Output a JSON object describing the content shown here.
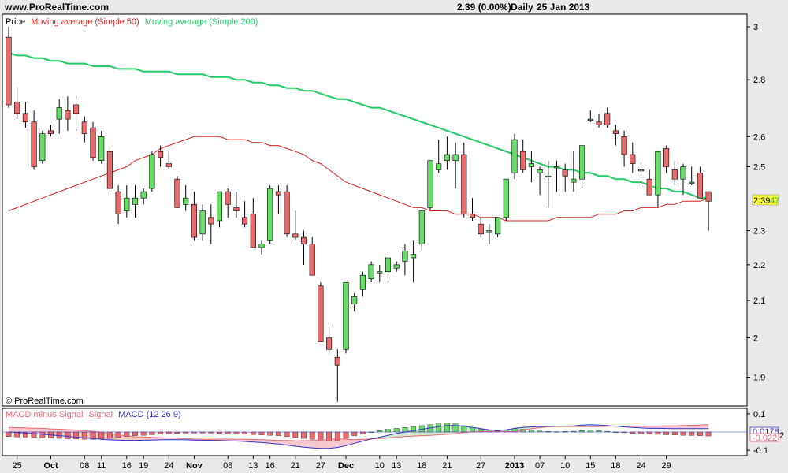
{
  "header": {
    "site": "www.ProRealTime.com",
    "quote": "2.39 (0.00%)",
    "period": "Daily",
    "date": "25 Jan 2013"
  },
  "legend": {
    "price": "Price",
    "ma50": "Moving average (Simple 50)",
    "ma200": "Moving average (Simple 200)"
  },
  "copyright": "© ProRealTime.com",
  "macd_legend": {
    "histogram": "MACD minus Signal",
    "signal": "Signal",
    "macd": "MACD (12 26 9)"
  },
  "colors": {
    "up": "#66dd66",
    "down": "#e86a6a",
    "ma50": "#dd2222",
    "ma200": "#22cc66",
    "macd": "#3333cc",
    "signal": "#ee6677",
    "price_tag": "#ffff33"
  },
  "price_tag": {
    "value": "2.39",
    "extra": "47"
  },
  "macd_tags": {
    "macd": "0.0178",
    "hist": "-0.022",
    "extra": "2"
  },
  "chart_data": [
    {
      "type": "candlestick",
      "title": "",
      "y_ticks": [
        1.9,
        2,
        2.1,
        2.2,
        2.3,
        2.5,
        2.6,
        2.8,
        3
      ],
      "ylim": [
        1.83,
        3.05
      ],
      "log_scale": true,
      "x_tick_labels": [
        "25",
        "Oct",
        "08",
        "11",
        "16",
        "19",
        "24",
        "Nov",
        "08",
        "13",
        "16",
        "21",
        "27",
        "Dec",
        "10",
        "13",
        "18",
        "21",
        "27",
        "2013",
        "07",
        "10",
        "15",
        "18",
        "24",
        "29"
      ],
      "x_tick_bars": [
        1,
        5,
        9,
        11,
        14,
        16,
        19,
        22,
        26,
        29,
        31,
        34,
        37,
        40,
        44,
        46,
        49,
        52,
        56,
        60,
        63,
        66,
        69,
        72,
        75,
        78
      ],
      "ohlc": [
        [
          2.96,
          3.0,
          2.7,
          2.71
        ],
        [
          2.72,
          2.77,
          2.66,
          2.68
        ],
        [
          2.68,
          2.72,
          2.63,
          2.65
        ],
        [
          2.65,
          2.69,
          2.49,
          2.5
        ],
        [
          2.52,
          2.62,
          2.51,
          2.61
        ],
        [
          2.62,
          2.64,
          2.6,
          2.61
        ],
        [
          2.66,
          2.73,
          2.61,
          2.7
        ],
        [
          2.69,
          2.74,
          2.62,
          2.66
        ],
        [
          2.71,
          2.74,
          2.62,
          2.68
        ],
        [
          2.65,
          2.67,
          2.58,
          2.61
        ],
        [
          2.63,
          2.65,
          2.52,
          2.53
        ],
        [
          2.52,
          2.62,
          2.51,
          2.6
        ],
        [
          2.55,
          2.57,
          2.42,
          2.43
        ],
        [
          2.42,
          2.44,
          2.32,
          2.35
        ],
        [
          2.36,
          2.44,
          2.34,
          2.4
        ],
        [
          2.38,
          2.44,
          2.34,
          2.4
        ],
        [
          2.4,
          2.43,
          2.38,
          2.42
        ],
        [
          2.43,
          2.55,
          2.42,
          2.54
        ],
        [
          2.55,
          2.57,
          2.5,
          2.53
        ],
        [
          2.51,
          2.55,
          2.49,
          2.5
        ],
        [
          2.46,
          2.47,
          2.37,
          2.37
        ],
        [
          2.38,
          2.44,
          2.36,
          2.4
        ],
        [
          2.38,
          2.42,
          2.27,
          2.28
        ],
        [
          2.29,
          2.38,
          2.27,
          2.36
        ],
        [
          2.34,
          2.38,
          2.26,
          2.32
        ],
        [
          2.33,
          2.42,
          2.31,
          2.42
        ],
        [
          2.42,
          2.43,
          2.34,
          2.38
        ],
        [
          2.37,
          2.42,
          2.34,
          2.36
        ],
        [
          2.34,
          2.39,
          2.31,
          2.32
        ],
        [
          2.35,
          2.4,
          2.25,
          2.25
        ],
        [
          2.25,
          2.27,
          2.23,
          2.26
        ],
        [
          2.27,
          2.44,
          2.26,
          2.43
        ],
        [
          2.42,
          2.44,
          2.35,
          2.41
        ],
        [
          2.42,
          2.44,
          2.28,
          2.29
        ],
        [
          2.29,
          2.36,
          2.27,
          2.28
        ],
        [
          2.28,
          2.3,
          2.2,
          2.26
        ],
        [
          2.26,
          2.28,
          2.17,
          2.17
        ],
        [
          2.14,
          2.15,
          1.99,
          1.99
        ],
        [
          2.0,
          2.03,
          1.96,
          1.97
        ],
        [
          1.95,
          1.97,
          1.84,
          1.93
        ],
        [
          1.97,
          2.15,
          1.96,
          2.15
        ],
        [
          2.09,
          2.12,
          2.07,
          2.11
        ],
        [
          2.13,
          2.18,
          2.11,
          2.17
        ],
        [
          2.16,
          2.21,
          2.15,
          2.2
        ],
        [
          2.18,
          2.2,
          2.15,
          2.18
        ],
        [
          2.18,
          2.23,
          2.15,
          2.22
        ],
        [
          2.19,
          2.21,
          2.18,
          2.2
        ],
        [
          2.21,
          2.26,
          2.17,
          2.24
        ],
        [
          2.22,
          2.27,
          2.15,
          2.23
        ],
        [
          2.26,
          2.36,
          2.24,
          2.36
        ],
        [
          2.37,
          2.52,
          2.36,
          2.52
        ],
        [
          2.49,
          2.59,
          2.48,
          2.51
        ],
        [
          2.52,
          2.6,
          2.49,
          2.54
        ],
        [
          2.52,
          2.58,
          2.43,
          2.54
        ],
        [
          2.54,
          2.58,
          2.34,
          2.35
        ],
        [
          2.35,
          2.4,
          2.33,
          2.34
        ],
        [
          2.32,
          2.34,
          2.28,
          2.29
        ],
        [
          2.3,
          2.32,
          2.26,
          2.3
        ],
        [
          2.29,
          2.34,
          2.28,
          2.34
        ],
        [
          2.34,
          2.46,
          2.33,
          2.46
        ],
        [
          2.48,
          2.61,
          2.46,
          2.59
        ],
        [
          2.55,
          2.59,
          2.48,
          2.49
        ],
        [
          2.5,
          2.55,
          2.45,
          2.51
        ],
        [
          2.48,
          2.5,
          2.41,
          2.49
        ],
        [
          2.47,
          2.52,
          2.37,
          2.47
        ],
        [
          2.5,
          2.52,
          2.42,
          2.5
        ],
        [
          2.49,
          2.51,
          2.42,
          2.47
        ],
        [
          2.45,
          2.55,
          2.42,
          2.46
        ],
        [
          2.46,
          2.56,
          2.43,
          2.57
        ],
        [
          2.66,
          2.69,
          2.65,
          2.66
        ],
        [
          2.65,
          2.68,
          2.63,
          2.64
        ],
        [
          2.68,
          2.7,
          2.63,
          2.64
        ],
        [
          2.62,
          2.64,
          2.57,
          2.61
        ],
        [
          2.6,
          2.62,
          2.5,
          2.54
        ],
        [
          2.54,
          2.58,
          2.48,
          2.51
        ],
        [
          2.49,
          2.51,
          2.44,
          2.49
        ],
        [
          2.46,
          2.49,
          2.42,
          2.41
        ],
        [
          2.41,
          2.55,
          2.37,
          2.55
        ],
        [
          2.56,
          2.57,
          2.48,
          2.5
        ],
        [
          2.49,
          2.52,
          2.44,
          2.46
        ],
        [
          2.46,
          2.51,
          2.41,
          2.5
        ],
        [
          2.45,
          2.5,
          2.44,
          2.45
        ],
        [
          2.48,
          2.5,
          2.4,
          2.4
        ],
        [
          2.42,
          2.42,
          2.3,
          2.39
        ]
      ],
      "ma50": [
        2.36,
        2.37,
        2.38,
        2.39,
        2.4,
        2.41,
        2.42,
        2.43,
        2.44,
        2.45,
        2.46,
        2.47,
        2.48,
        2.49,
        2.5,
        2.52,
        2.53,
        2.54,
        2.56,
        2.57,
        2.58,
        2.59,
        2.6,
        2.6,
        2.6,
        2.6,
        2.59,
        2.59,
        2.59,
        2.58,
        2.58,
        2.57,
        2.57,
        2.56,
        2.55,
        2.54,
        2.52,
        2.51,
        2.49,
        2.47,
        2.45,
        2.44,
        2.43,
        2.42,
        2.41,
        2.4,
        2.39,
        2.38,
        2.37,
        2.37,
        2.36,
        2.36,
        2.36,
        2.35,
        2.35,
        2.35,
        2.34,
        2.34,
        2.34,
        2.33,
        2.33,
        2.33,
        2.33,
        2.33,
        2.33,
        2.34,
        2.34,
        2.34,
        2.34,
        2.34,
        2.35,
        2.35,
        2.35,
        2.36,
        2.36,
        2.37,
        2.37,
        2.37,
        2.38,
        2.38,
        2.39,
        2.39,
        2.39,
        2.4
      ],
      "ma200": [
        2.9,
        2.89,
        2.89,
        2.88,
        2.88,
        2.87,
        2.87,
        2.86,
        2.86,
        2.86,
        2.85,
        2.85,
        2.85,
        2.84,
        2.84,
        2.84,
        2.83,
        2.83,
        2.83,
        2.83,
        2.82,
        2.82,
        2.82,
        2.82,
        2.81,
        2.81,
        2.81,
        2.8,
        2.8,
        2.79,
        2.79,
        2.78,
        2.78,
        2.77,
        2.77,
        2.76,
        2.76,
        2.75,
        2.74,
        2.73,
        2.73,
        2.72,
        2.71,
        2.7,
        2.7,
        2.69,
        2.68,
        2.67,
        2.66,
        2.65,
        2.64,
        2.63,
        2.62,
        2.61,
        2.6,
        2.59,
        2.58,
        2.57,
        2.56,
        2.55,
        2.54,
        2.53,
        2.52,
        2.51,
        2.5,
        2.5,
        2.49,
        2.49,
        2.48,
        2.48,
        2.47,
        2.47,
        2.46,
        2.46,
        2.45,
        2.45,
        2.44,
        2.43,
        2.43,
        2.42,
        2.42,
        2.41,
        2.4,
        2.4
      ]
    },
    {
      "type": "bar",
      "title": "",
      "y_ticks": [
        0.1,
        -0.1
      ],
      "ylim": [
        -0.13,
        0.13
      ],
      "histogram": [
        -0.025,
        -0.027,
        -0.028,
        -0.03,
        -0.032,
        -0.033,
        -0.035,
        -0.037,
        -0.038,
        -0.04,
        -0.04,
        -0.038,
        -0.035,
        -0.03,
        -0.025,
        -0.02,
        -0.018,
        -0.015,
        -0.012,
        -0.01,
        -0.008,
        -0.006,
        -0.005,
        -0.005,
        -0.006,
        -0.008,
        -0.009,
        -0.01,
        -0.012,
        -0.014,
        -0.016,
        -0.018,
        -0.02,
        -0.025,
        -0.03,
        -0.035,
        -0.04,
        -0.045,
        -0.05,
        -0.048,
        -0.035,
        -0.02,
        -0.01,
        0.0,
        0.008,
        0.015,
        0.02,
        0.025,
        0.03,
        0.035,
        0.04,
        0.045,
        0.048,
        0.045,
        0.035,
        0.025,
        0.015,
        0.01,
        0.005,
        0.01,
        0.018,
        0.015,
        0.01,
        0.006,
        0.003,
        0.002,
        0.003,
        0.004,
        0.008,
        0.01,
        0.008,
        0.004,
        0.0,
        -0.004,
        -0.008,
        -0.01,
        -0.012,
        -0.013,
        -0.015,
        -0.016,
        -0.018,
        -0.019,
        -0.02,
        -0.022
      ],
      "macd": [
        0.0,
        -0.003,
        -0.006,
        -0.009,
        -0.012,
        -0.016,
        -0.02,
        -0.024,
        -0.028,
        -0.032,
        -0.036,
        -0.04,
        -0.043,
        -0.045,
        -0.046,
        -0.046,
        -0.045,
        -0.044,
        -0.043,
        -0.042,
        -0.042,
        -0.043,
        -0.044,
        -0.045,
        -0.046,
        -0.047,
        -0.048,
        -0.05,
        -0.052,
        -0.055,
        -0.058,
        -0.062,
        -0.066,
        -0.072,
        -0.078,
        -0.083,
        -0.087,
        -0.09,
        -0.09,
        -0.085,
        -0.075,
        -0.062,
        -0.05,
        -0.038,
        -0.028,
        -0.018,
        -0.008,
        0.0,
        0.008,
        0.015,
        0.022,
        0.03,
        0.035,
        0.036,
        0.032,
        0.025,
        0.018,
        0.012,
        0.008,
        0.012,
        0.02,
        0.025,
        0.028,
        0.03,
        0.031,
        0.032,
        0.033,
        0.034,
        0.038,
        0.04,
        0.038,
        0.035,
        0.032,
        0.028,
        0.025,
        0.022,
        0.02,
        0.02,
        0.019,
        0.018,
        0.018,
        0.018,
        0.018,
        0.018
      ],
      "signal": [
        0.025,
        0.024,
        0.022,
        0.021,
        0.02,
        0.017,
        0.015,
        0.013,
        0.01,
        0.008,
        0.004,
        -0.002,
        -0.008,
        -0.015,
        -0.021,
        -0.026,
        -0.027,
        -0.029,
        -0.031,
        -0.032,
        -0.034,
        -0.037,
        -0.039,
        -0.04,
        -0.04,
        -0.039,
        -0.039,
        -0.04,
        -0.04,
        -0.041,
        -0.042,
        -0.044,
        -0.046,
        -0.047,
        -0.048,
        -0.048,
        -0.047,
        -0.045,
        -0.04,
        -0.037,
        -0.04,
        -0.042,
        -0.04,
        -0.038,
        -0.036,
        -0.033,
        -0.028,
        -0.025,
        -0.022,
        -0.02,
        -0.018,
        -0.015,
        -0.013,
        -0.009,
        -0.003,
        0.0,
        0.003,
        0.002,
        0.003,
        0.002,
        0.002,
        0.01,
        0.018,
        0.024,
        0.028,
        0.03,
        0.03,
        0.03,
        0.03,
        0.03,
        0.03,
        0.031,
        0.032,
        0.032,
        0.033,
        0.032,
        0.032,
        0.033,
        0.034,
        0.034,
        0.036,
        0.037,
        0.038,
        0.04
      ]
    }
  ]
}
